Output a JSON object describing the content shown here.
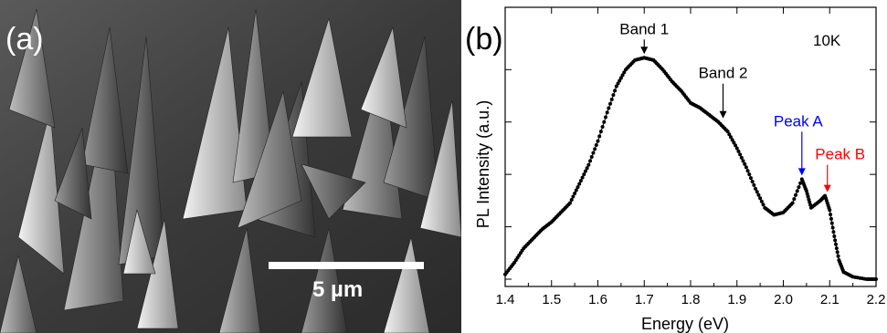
{
  "panel_a": {
    "label": "(a)",
    "scale_bar_label": "5 µm"
  },
  "panel_b": {
    "label": "(b)"
  },
  "chart_data": {
    "type": "scatter",
    "xlabel": "Energy (eV)",
    "ylabel": "PL Intensity (a.u.)",
    "xlim": [
      1.4,
      2.2
    ],
    "xticks": [
      "1.4",
      "1.5",
      "1.6",
      "1.7",
      "1.8",
      "1.9",
      "2.0",
      "2.1",
      "2.2"
    ],
    "y_tick_labels_shown": false,
    "temperature_label": "10K",
    "series": [
      {
        "color": "#000000",
        "marker": "dot-with-line",
        "points": [
          [
            1.4,
            0.02
          ],
          [
            1.42,
            0.07
          ],
          [
            1.44,
            0.13
          ],
          [
            1.46,
            0.17
          ],
          [
            1.48,
            0.21
          ],
          [
            1.5,
            0.24
          ],
          [
            1.52,
            0.28
          ],
          [
            1.54,
            0.32
          ],
          [
            1.56,
            0.4
          ],
          [
            1.58,
            0.48
          ],
          [
            1.6,
            0.58
          ],
          [
            1.62,
            0.7
          ],
          [
            1.64,
            0.81
          ],
          [
            1.66,
            0.88
          ],
          [
            1.68,
            0.92
          ],
          [
            1.7,
            0.93
          ],
          [
            1.72,
            0.92
          ],
          [
            1.74,
            0.88
          ],
          [
            1.76,
            0.83
          ],
          [
            1.78,
            0.79
          ],
          [
            1.8,
            0.74
          ],
          [
            1.82,
            0.72
          ],
          [
            1.84,
            0.69
          ],
          [
            1.86,
            0.66
          ],
          [
            1.88,
            0.62
          ],
          [
            1.9,
            0.55
          ],
          [
            1.92,
            0.47
          ],
          [
            1.94,
            0.38
          ],
          [
            1.96,
            0.3
          ],
          [
            1.98,
            0.27
          ],
          [
            2.0,
            0.28
          ],
          [
            2.02,
            0.32
          ],
          [
            2.04,
            0.42
          ],
          [
            2.05,
            0.37
          ],
          [
            2.06,
            0.3
          ],
          [
            2.08,
            0.33
          ],
          [
            2.09,
            0.35
          ],
          [
            2.1,
            0.29
          ],
          [
            2.11,
            0.18
          ],
          [
            2.12,
            0.08
          ],
          [
            2.13,
            0.03
          ],
          [
            2.15,
            0.01
          ],
          [
            2.18,
            0.0
          ],
          [
            2.2,
            0.0
          ]
        ]
      }
    ],
    "annotations": [
      {
        "text": "Band 1",
        "x": 1.7,
        "y": 0.93,
        "color": "#000000"
      },
      {
        "text": "Band 2",
        "x": 1.87,
        "y": 0.66,
        "color": "#000000"
      },
      {
        "text": "Peak A",
        "x": 2.04,
        "y": 0.42,
        "color": "#0000ff"
      },
      {
        "text": "Peak B",
        "x": 2.095,
        "y": 0.35,
        "color": "#ff0000"
      }
    ]
  }
}
